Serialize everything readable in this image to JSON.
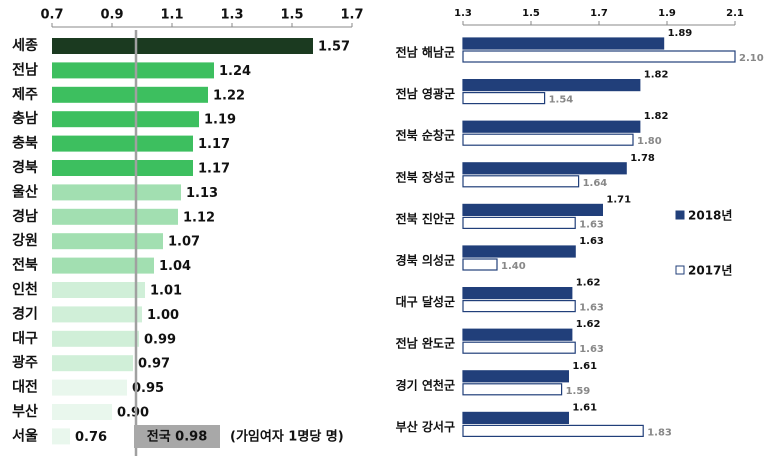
{
  "chart_data": [
    {
      "type": "bar",
      "categories": [
        "세종",
        "전남",
        "제주",
        "충남",
        "충북",
        "경북",
        "울산",
        "경남",
        "강원",
        "전북",
        "인천",
        "경기",
        "대구",
        "광주",
        "대전",
        "부산",
        "서울"
      ],
      "values": [
        1.57,
        1.24,
        1.22,
        1.19,
        1.17,
        1.17,
        1.13,
        1.12,
        1.07,
        1.04,
        1.01,
        1.0,
        0.99,
        0.97,
        0.95,
        0.9,
        0.76
      ],
      "value_labels": [
        "1.57",
        "1.24",
        "1.22",
        "1.19",
        "1.17",
        "1.17",
        "1.13",
        "1.12",
        "1.07",
        "1.04",
        "1.01",
        "1.00",
        "0.99",
        "0.97",
        "0.95",
        "0.90",
        "0.76"
      ],
      "colors": [
        "#1b3a20",
        "#3dbf5f",
        "#3dbf5f",
        "#3dbf5f",
        "#3dbf5f",
        "#3dbf5f",
        "#a2dfb1",
        "#a2dfb1",
        "#a2dfb1",
        "#a2dfb1",
        "#d0efd8",
        "#d0efd8",
        "#d0efd8",
        "#d0efd8",
        "#e9f7ed",
        "#e9f7ed",
        "#e9f7ed"
      ],
      "xlim": [
        0.7,
        1.7
      ],
      "xticks": [
        0.7,
        0.9,
        1.1,
        1.3,
        1.5,
        1.7
      ],
      "reference_line": {
        "value": 0.98,
        "label": "전국 0.98"
      },
      "note": "(가임여자 1명당 명)"
    },
    {
      "type": "bar",
      "categories": [
        "전남 해남군",
        "전남 영광군",
        "전북 순창군",
        "전북 장성군",
        "전북 진안군",
        "경북 의성군",
        "대구 달성군",
        "전남 완도군",
        "경기 연천군",
        "부산 강서구"
      ],
      "series": [
        {
          "name": "2018년",
          "color": "#213f7a",
          "fill": true,
          "values": [
            1.89,
            1.82,
            1.82,
            1.78,
            1.71,
            1.63,
            1.62,
            1.62,
            1.61,
            1.61
          ]
        },
        {
          "name": "2017년",
          "color": "#213f7a",
          "fill": false,
          "values": [
            2.1,
            1.54,
            1.8,
            1.64,
            1.63,
            1.4,
            1.63,
            1.63,
            1.59,
            1.83
          ],
          "value_labels": [
            "2.10",
            "1.54",
            "1.80",
            "1.64",
            "1.63",
            "1.40",
            "1.63",
            "1.63",
            "1.59",
            "1.83"
          ]
        }
      ],
      "xlim": [
        1.3,
        2.1
      ],
      "xticks": [
        1.3,
        1.5,
        1.7,
        1.9,
        2.1
      ],
      "legend": "right"
    }
  ]
}
